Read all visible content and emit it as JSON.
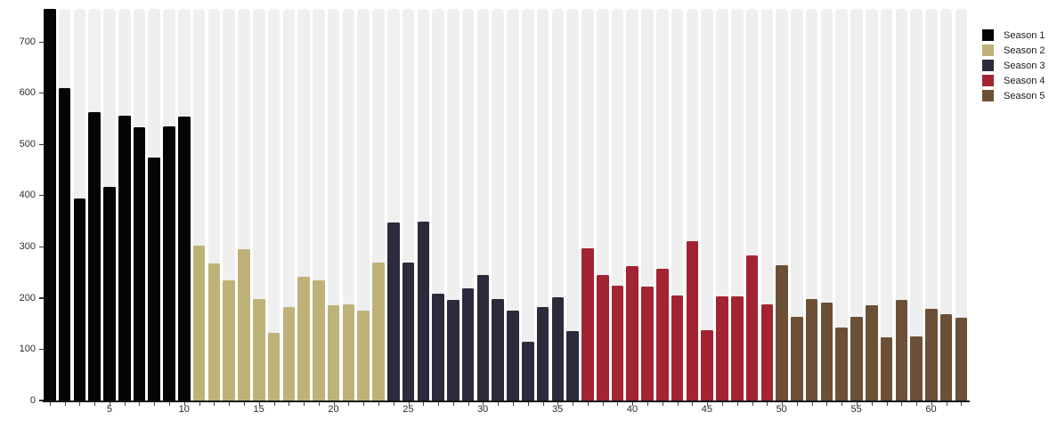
{
  "chart_data": {
    "type": "bar",
    "title": "",
    "xlabel": "",
    "ylabel": "",
    "x_range": [
      1,
      62
    ],
    "ylim": [
      0,
      765
    ],
    "y_ticks": [
      0,
      100,
      200,
      300,
      400,
      500,
      600,
      700
    ],
    "x_ticks": [
      5,
      10,
      15,
      20,
      25,
      30,
      35,
      40,
      45,
      50,
      55,
      60
    ],
    "grid": false,
    "background_tracks": true,
    "track_color": "#efefef",
    "axis_color": "#151515",
    "tick_label_color": "#2b2b2b",
    "legend_position": "top-right",
    "series": [
      {
        "name": "Season 1",
        "color": "#050505",
        "x_start": 1,
        "values": [
          766,
          610,
          394,
          564,
          417,
          556,
          534,
          475,
          536,
          554
        ]
      },
      {
        "name": "Season 2",
        "color": "#bfb279",
        "x_start": 11,
        "values": [
          302,
          267,
          234,
          295,
          198,
          132,
          182,
          242,
          234,
          186,
          188,
          175,
          269
        ]
      },
      {
        "name": "Season 3",
        "color": "#2d2a3c",
        "x_start": 24,
        "values": [
          347,
          269,
          350,
          208,
          196,
          219,
          245,
          198,
          176,
          115,
          182,
          201,
          135
        ]
      },
      {
        "name": "Season 4",
        "color": "#a22433",
        "x_start": 37,
        "values": [
          298,
          246,
          224,
          262,
          222,
          257,
          206,
          311,
          138,
          204,
          204,
          283,
          188
        ]
      },
      {
        "name": "Season 5",
        "color": "#6c5036",
        "x_start": 50,
        "values": [
          265,
          163,
          199,
          192,
          143,
          164,
          186,
          124,
          197,
          125,
          179,
          168,
          161
        ]
      }
    ]
  }
}
